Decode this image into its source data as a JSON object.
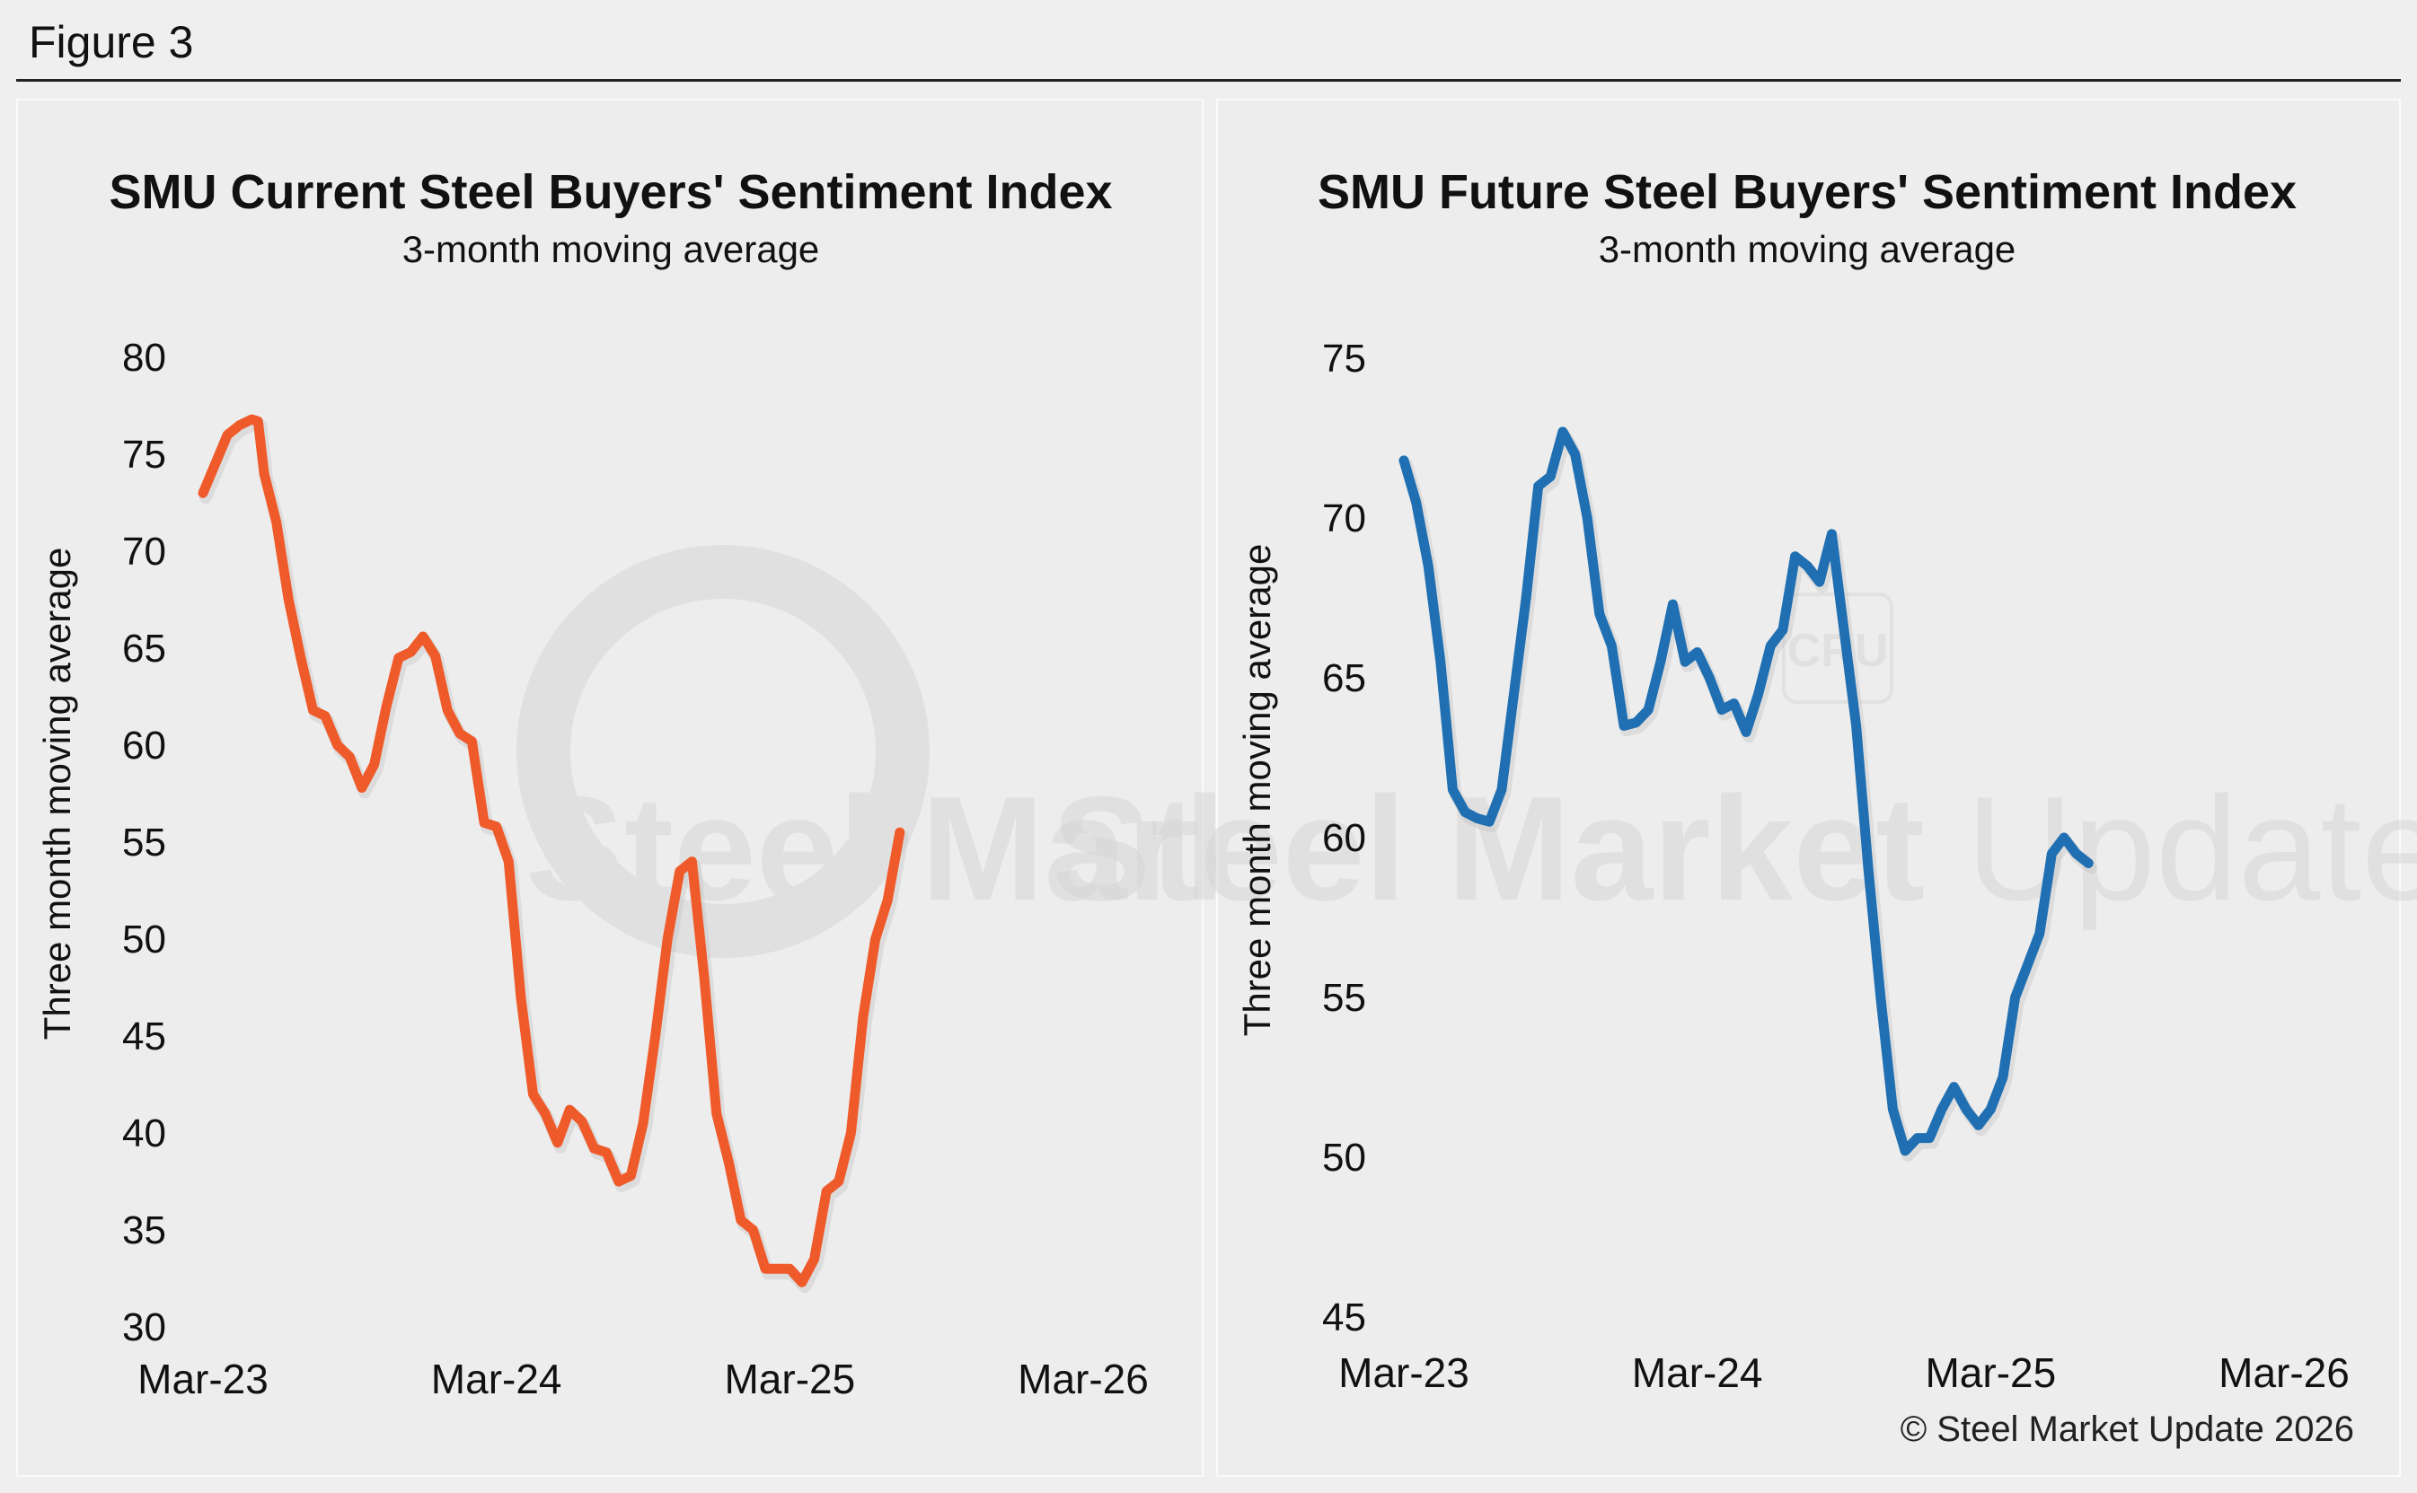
{
  "figure_label": "Figure 3",
  "copyright": "© Steel Market Update 2026",
  "watermark": {
    "text_bold": "Steel Market",
    "text_light": "Update",
    "badge": "CRU"
  },
  "colors": {
    "current_series": "#ef5a2a",
    "future_series": "#1f6fb2",
    "background": "#efefef",
    "watermark": "#dcdcdc"
  },
  "chart_data": [
    {
      "type": "line",
      "title": "SMU Current Steel Buyers' Sentiment Index",
      "subtitle": "3-month moving average",
      "xlabel": "",
      "ylabel": "Three month moving average",
      "ylim": [
        30,
        80
      ],
      "yticks": [
        30,
        35,
        40,
        45,
        50,
        55,
        60,
        65,
        70,
        75,
        80
      ],
      "xlim": [
        0,
        36
      ],
      "xticks": [
        {
          "x": 0,
          "label": "Mar-23"
        },
        {
          "x": 12,
          "label": "Mar-24"
        },
        {
          "x": 24,
          "label": "Mar-25"
        },
        {
          "x": 36,
          "label": "Mar-26"
        }
      ],
      "grid": false,
      "legend": "none",
      "series": [
        {
          "color": "#ef5a2a",
          "points": [
            [
              0,
              73.0
            ],
            [
              0.5,
              74.5
            ],
            [
              1,
              76.0
            ],
            [
              1.5,
              76.5
            ],
            [
              2,
              76.8
            ],
            [
              2.25,
              76.7
            ],
            [
              2.5,
              74.0
            ],
            [
              3,
              71.5
            ],
            [
              3.5,
              67.5
            ],
            [
              4,
              64.5
            ],
            [
              4.5,
              61.8
            ],
            [
              5,
              61.5
            ],
            [
              5.5,
              60.0
            ],
            [
              6,
              59.4
            ],
            [
              6.5,
              57.8
            ],
            [
              7,
              59.0
            ],
            [
              7.5,
              62.0
            ],
            [
              8,
              64.5
            ],
            [
              8.5,
              64.8
            ],
            [
              9,
              65.6
            ],
            [
              9.5,
              64.6
            ],
            [
              10,
              61.8
            ],
            [
              10.5,
              60.6
            ],
            [
              11,
              60.2
            ],
            [
              11.5,
              56.0
            ],
            [
              12,
              55.8
            ],
            [
              12.5,
              54.0
            ],
            [
              13,
              47.0
            ],
            [
              13.5,
              42.0
            ],
            [
              14,
              41.0
            ],
            [
              14.5,
              39.5
            ],
            [
              15,
              41.2
            ],
            [
              15.5,
              40.6
            ],
            [
              16,
              39.2
            ],
            [
              16.5,
              39.0
            ],
            [
              17,
              37.5
            ],
            [
              17.5,
              37.8
            ],
            [
              18,
              40.5
            ],
            [
              18.5,
              45.0
            ],
            [
              19,
              50.0
            ],
            [
              19.5,
              53.5
            ],
            [
              20,
              54.0
            ],
            [
              20.5,
              48.0
            ],
            [
              21,
              41.0
            ],
            [
              21.5,
              38.5
            ],
            [
              22,
              35.5
            ],
            [
              22.5,
              35.0
            ],
            [
              23,
              33.0
            ],
            [
              23.5,
              33.0
            ],
            [
              24,
              33.0
            ],
            [
              24.5,
              32.3
            ],
            [
              25,
              33.5
            ],
            [
              25.5,
              37.0
            ],
            [
              26,
              37.5
            ],
            [
              26.5,
              40.0
            ],
            [
              27,
              46.0
            ],
            [
              27.5,
              50.0
            ],
            [
              28,
              52.0
            ],
            [
              28.5,
              55.5
            ]
          ]
        }
      ]
    },
    {
      "type": "line",
      "title": "SMU Future Steel Buyers' Sentiment Index",
      "subtitle": "3-month moving average",
      "xlabel": "",
      "ylabel": "Three month moving average",
      "ylim": [
        45,
        75
      ],
      "yticks": [
        45,
        50,
        55,
        60,
        65,
        70,
        75
      ],
      "xlim": [
        0,
        36
      ],
      "xticks": [
        {
          "x": 0,
          "label": "Mar-23"
        },
        {
          "x": 12,
          "label": "Mar-24"
        },
        {
          "x": 24,
          "label": "Mar-25"
        },
        {
          "x": 36,
          "label": "Mar-26"
        }
      ],
      "grid": false,
      "legend": "none",
      "series": [
        {
          "color": "#1f6fb2",
          "points": [
            [
              0,
              71.8
            ],
            [
              0.5,
              70.5
            ],
            [
              1,
              68.5
            ],
            [
              1.5,
              65.5
            ],
            [
              2,
              61.5
            ],
            [
              2.5,
              60.8
            ],
            [
              3,
              60.6
            ],
            [
              3.5,
              60.5
            ],
            [
              4,
              61.5
            ],
            [
              4.5,
              64.5
            ],
            [
              5,
              67.5
            ],
            [
              5.5,
              71.0
            ],
            [
              6,
              71.3
            ],
            [
              6.5,
              72.7
            ],
            [
              7,
              72.0
            ],
            [
              7.5,
              70.0
            ],
            [
              8,
              67.0
            ],
            [
              8.5,
              66.0
            ],
            [
              9,
              63.5
            ],
            [
              9.5,
              63.6
            ],
            [
              10,
              64.0
            ],
            [
              10.5,
              65.5
            ],
            [
              11,
              67.3
            ],
            [
              11.5,
              65.5
            ],
            [
              12,
              65.8
            ],
            [
              12.5,
              65.0
            ],
            [
              13,
              64.0
            ],
            [
              13.5,
              64.2
            ],
            [
              14,
              63.3
            ],
            [
              14.5,
              64.5
            ],
            [
              15,
              66.0
            ],
            [
              15.5,
              66.5
            ],
            [
              16,
              68.8
            ],
            [
              16.5,
              68.5
            ],
            [
              17,
              68.0
            ],
            [
              17.5,
              69.5
            ],
            [
              18,
              66.5
            ],
            [
              18.5,
              63.5
            ],
            [
              19,
              59.0
            ],
            [
              19.5,
              55.0
            ],
            [
              20,
              51.5
            ],
            [
              20.5,
              50.2
            ],
            [
              21,
              50.6
            ],
            [
              21.5,
              50.6
            ],
            [
              22,
              51.5
            ],
            [
              22.5,
              52.2
            ],
            [
              23,
              51.5
            ],
            [
              23.5,
              51.0
            ],
            [
              24,
              51.5
            ],
            [
              24.5,
              52.5
            ],
            [
              25,
              55.0
            ],
            [
              25.5,
              56.0
            ],
            [
              26,
              57.0
            ],
            [
              26.5,
              59.5
            ],
            [
              27,
              60.0
            ],
            [
              27.5,
              59.5
            ],
            [
              28,
              59.2
            ]
          ]
        }
      ]
    }
  ]
}
